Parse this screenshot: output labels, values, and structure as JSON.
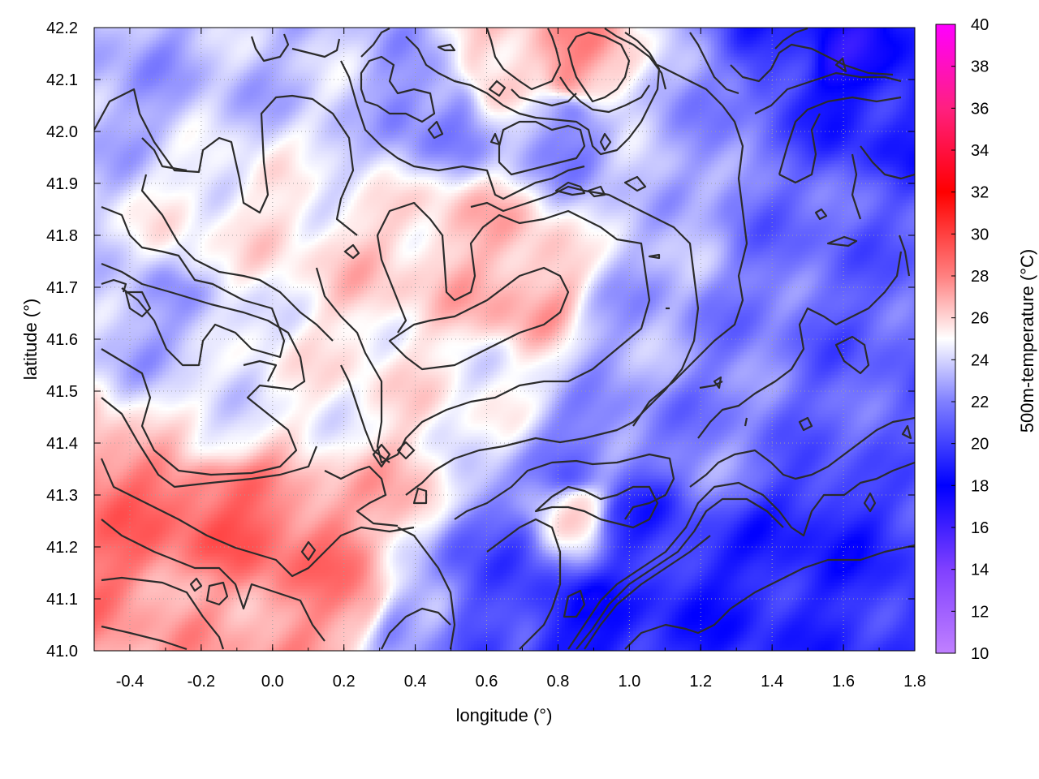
{
  "chart_data": {
    "type": "heatmap",
    "title": "",
    "xlabel": "longitude (°)",
    "ylabel": "latitude (°)",
    "colorbar_label": "500m-temperature (°C)",
    "xlim": [
      -0.5,
      1.8
    ],
    "ylim": [
      41.0,
      42.2
    ],
    "clim": [
      10,
      40
    ],
    "x_ticks": [
      -0.4,
      -0.2,
      0.0,
      0.2,
      0.4,
      0.6,
      0.8,
      1.0,
      1.2,
      1.4,
      1.6,
      1.8
    ],
    "x_tick_labels": [
      "-0.4",
      "-0.2",
      "0.0",
      "0.2",
      "0.4",
      "0.6",
      "0.8",
      "1.0",
      "1.2",
      "1.4",
      "1.6",
      "1.8"
    ],
    "y_ticks": [
      41.0,
      41.1,
      41.2,
      41.3,
      41.4,
      41.5,
      41.6,
      41.7,
      41.8,
      41.9,
      42.0,
      42.1,
      42.2
    ],
    "y_tick_labels": [
      "41.0",
      "41.1",
      "41.2",
      "41.3",
      "41.4",
      "41.5",
      "41.6",
      "41.7",
      "41.8",
      "41.9",
      "42.0",
      "42.1",
      "42.2"
    ],
    "colorbar_ticks": [
      10,
      12,
      14,
      16,
      18,
      20,
      22,
      24,
      26,
      28,
      30,
      32,
      34,
      36,
      38,
      40
    ],
    "colorbar_tick_labels": [
      "10",
      "12",
      "14",
      "16",
      "18",
      "20",
      "22",
      "24",
      "26",
      "28",
      "30",
      "32",
      "34",
      "36",
      "38",
      "40"
    ],
    "colormap": [
      {
        "v": 10,
        "color": "#c080ff"
      },
      {
        "v": 14,
        "color": "#8040ff"
      },
      {
        "v": 18,
        "color": "#0000ff"
      },
      {
        "v": 22,
        "color": "#8080ff"
      },
      {
        "v": 25,
        "color": "#ffffff"
      },
      {
        "v": 28,
        "color": "#ff8080"
      },
      {
        "v": 32,
        "color": "#ff0000"
      },
      {
        "v": 36,
        "color": "#ff2080"
      },
      {
        "v": 40,
        "color": "#ff00ff"
      }
    ],
    "grid": true,
    "field_estimate": [
      {
        "lon": -0.4,
        "lat": 41.25,
        "temp": 28.5
      },
      {
        "lon": -0.15,
        "lat": 41.28,
        "temp": 29.0
      },
      {
        "lon": 0.1,
        "lat": 41.18,
        "temp": 28.5
      },
      {
        "lon": 0.2,
        "lat": 41.1,
        "temp": 27.5
      },
      {
        "lon": -0.2,
        "lat": 41.05,
        "temp": 27.0
      },
      {
        "lon": 0.35,
        "lat": 41.3,
        "temp": 26.5
      },
      {
        "lon": -0.15,
        "lat": 41.45,
        "temp": 24.5
      },
      {
        "lon": 0.1,
        "lat": 41.48,
        "temp": 25.0
      },
      {
        "lon": 0.35,
        "lat": 41.55,
        "temp": 25.5
      },
      {
        "lon": 0.55,
        "lat": 41.5,
        "temp": 25.0
      },
      {
        "lon": 0.7,
        "lat": 41.7,
        "temp": 27.0
      },
      {
        "lon": 0.55,
        "lat": 41.78,
        "temp": 26.5
      },
      {
        "lon": 0.3,
        "lat": 41.75,
        "temp": 26.0
      },
      {
        "lon": 0.0,
        "lat": 41.85,
        "temp": 25.5
      },
      {
        "lon": -0.2,
        "lat": 41.8,
        "temp": 25.0
      },
      {
        "lon": -0.3,
        "lat": 41.65,
        "temp": 23.0
      },
      {
        "lon": -0.4,
        "lat": 42.1,
        "temp": 23.0
      },
      {
        "lon": 0.0,
        "lat": 42.1,
        "temp": 23.5
      },
      {
        "lon": 0.45,
        "lat": 42.05,
        "temp": 22.0
      },
      {
        "lon": 0.15,
        "lat": 42.0,
        "temp": 24.0
      },
      {
        "lon": 0.85,
        "lat": 42.12,
        "temp": 27.5
      },
      {
        "lon": 0.65,
        "lat": 42.12,
        "temp": 26.5
      },
      {
        "lon": 0.8,
        "lat": 42.02,
        "temp": 22.0
      },
      {
        "lon": 1.2,
        "lat": 42.05,
        "temp": 22.5
      },
      {
        "lon": 1.6,
        "lat": 42.15,
        "temp": 17.5
      },
      {
        "lon": 1.45,
        "lat": 42.15,
        "temp": 19.5
      },
      {
        "lon": 1.75,
        "lat": 42.05,
        "temp": 19.0
      },
      {
        "lon": 1.1,
        "lat": 41.85,
        "temp": 23.5
      },
      {
        "lon": 1.4,
        "lat": 41.85,
        "temp": 21.5
      },
      {
        "lon": 1.7,
        "lat": 41.8,
        "temp": 21.0
      },
      {
        "lon": 1.0,
        "lat": 41.62,
        "temp": 23.0
      },
      {
        "lon": 1.3,
        "lat": 41.6,
        "temp": 22.0
      },
      {
        "lon": 1.6,
        "lat": 41.6,
        "temp": 21.0
      },
      {
        "lon": 1.75,
        "lat": 41.45,
        "temp": 21.0
      },
      {
        "lon": 1.2,
        "lat": 41.4,
        "temp": 22.0
      },
      {
        "lon": 0.85,
        "lat": 41.35,
        "temp": 21.5
      },
      {
        "lon": 0.85,
        "lat": 41.28,
        "temp": 25.5
      },
      {
        "lon": 1.0,
        "lat": 41.25,
        "temp": 19.5
      },
      {
        "lon": 0.6,
        "lat": 41.2,
        "temp": 20.5
      },
      {
        "lon": 0.6,
        "lat": 41.05,
        "temp": 20.5
      },
      {
        "lon": 0.85,
        "lat": 41.05,
        "temp": 18.5
      },
      {
        "lon": 1.2,
        "lat": 41.1,
        "temp": 19.0
      },
      {
        "lon": 1.5,
        "lat": 41.2,
        "temp": 19.0
      },
      {
        "lon": 1.7,
        "lat": 41.05,
        "temp": 19.5
      },
      {
        "lon": 0.4,
        "lat": 41.05,
        "temp": 22.5
      }
    ]
  }
}
